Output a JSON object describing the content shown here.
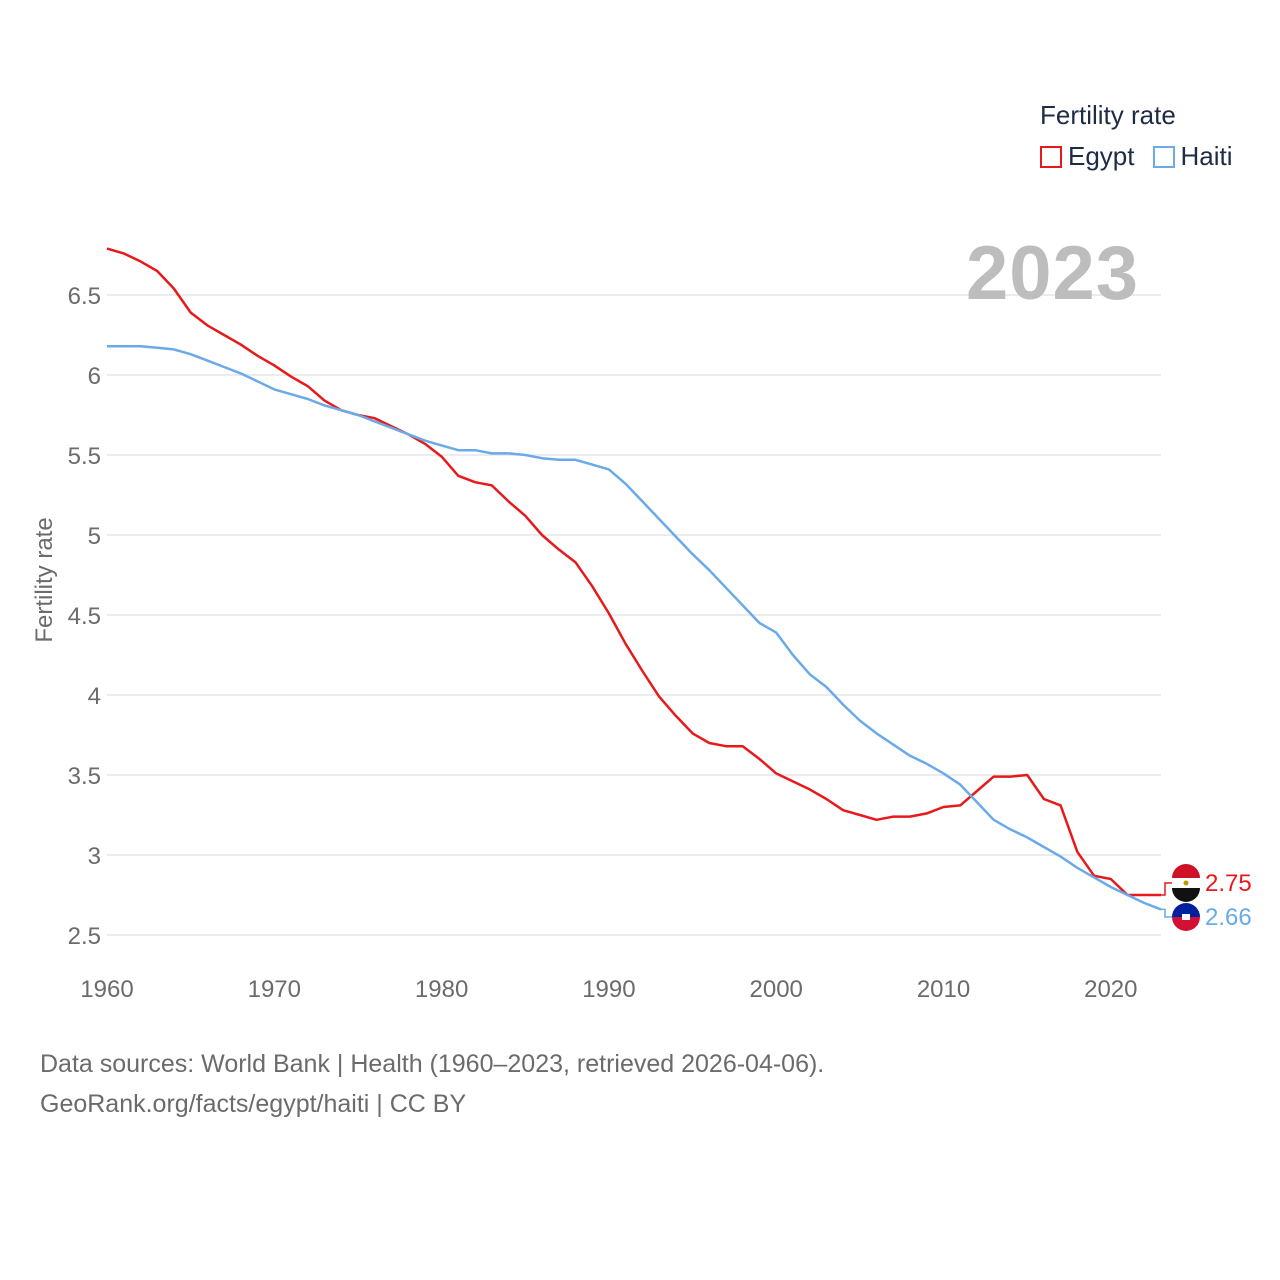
{
  "legend": {
    "title": "Fertility rate",
    "items": [
      {
        "label": "Egypt",
        "color": "#e8191b"
      },
      {
        "label": "Haiti",
        "color": "#6aaae8"
      }
    ]
  },
  "year_label": "2023",
  "source": {
    "line1": "Data sources: World Bank | Health (1960–2023, retrieved 2026-04-06).",
    "line2": "GeoRank.org/facts/egypt/haiti | CC BY"
  },
  "chart_data": {
    "type": "line",
    "title": "Fertility rate",
    "xlabel": "",
    "ylabel": "Fertility rate",
    "xlim": [
      1960,
      2023
    ],
    "ylim": [
      2.5,
      6.8
    ],
    "xticks": [
      1960,
      1970,
      1980,
      1990,
      2000,
      2010,
      2020
    ],
    "xtick_labels": [
      "1960",
      "1970",
      "1980",
      "1990",
      "2000",
      "2010",
      "2020"
    ],
    "yticks": [
      2.5,
      3,
      3.5,
      4,
      4.5,
      5,
      5.5,
      6,
      6.5
    ],
    "ytick_labels": [
      "2.5",
      "3",
      "3.5",
      "4",
      "4.5",
      "5",
      "5.5",
      "6",
      "6.5"
    ],
    "grid": true,
    "series": [
      {
        "name": "Egypt",
        "color": "#e8191b",
        "end_label": "2.75",
        "x": [
          1960,
          1961,
          1962,
          1963,
          1964,
          1965,
          1966,
          1967,
          1968,
          1969,
          1970,
          1971,
          1972,
          1973,
          1974,
          1975,
          1976,
          1977,
          1978,
          1979,
          1980,
          1981,
          1982,
          1983,
          1984,
          1985,
          1986,
          1987,
          1988,
          1989,
          1990,
          1991,
          1992,
          1993,
          1994,
          1995,
          1996,
          1997,
          1998,
          1999,
          2000,
          2001,
          2002,
          2003,
          2004,
          2005,
          2006,
          2007,
          2008,
          2009,
          2010,
          2011,
          2012,
          2013,
          2014,
          2015,
          2016,
          2017,
          2018,
          2019,
          2020,
          2021,
          2022,
          2023
        ],
        "y": [
          6.79,
          6.76,
          6.71,
          6.65,
          6.54,
          6.39,
          6.31,
          6.25,
          6.19,
          6.12,
          6.06,
          5.99,
          5.93,
          5.84,
          5.78,
          5.75,
          5.73,
          5.68,
          5.63,
          5.57,
          5.49,
          5.37,
          5.33,
          5.31,
          5.21,
          5.12,
          5.0,
          4.91,
          4.83,
          4.68,
          4.51,
          4.32,
          4.15,
          3.99,
          3.87,
          3.76,
          3.7,
          3.68,
          3.68,
          3.6,
          3.51,
          3.46,
          3.41,
          3.35,
          3.28,
          3.25,
          3.22,
          3.24,
          3.24,
          3.26,
          3.3,
          3.31,
          3.4,
          3.49,
          3.49,
          3.5,
          3.35,
          3.31,
          3.02,
          2.87,
          2.85,
          2.75,
          2.75,
          2.75
        ]
      },
      {
        "name": "Haiti",
        "color": "#6aaae8",
        "end_label": "2.66",
        "x": [
          1960,
          1961,
          1962,
          1963,
          1964,
          1965,
          1966,
          1967,
          1968,
          1969,
          1970,
          1971,
          1972,
          1973,
          1974,
          1975,
          1976,
          1977,
          1978,
          1979,
          1980,
          1981,
          1982,
          1983,
          1984,
          1985,
          1986,
          1987,
          1988,
          1989,
          1990,
          1991,
          1992,
          1993,
          1994,
          1995,
          1996,
          1997,
          1998,
          1999,
          2000,
          2001,
          2002,
          2003,
          2004,
          2005,
          2006,
          2007,
          2008,
          2009,
          2010,
          2011,
          2012,
          2013,
          2014,
          2015,
          2016,
          2017,
          2018,
          2019,
          2020,
          2021,
          2022,
          2023
        ],
        "y": [
          6.18,
          6.18,
          6.18,
          6.17,
          6.16,
          6.13,
          6.09,
          6.05,
          6.01,
          5.96,
          5.91,
          5.88,
          5.85,
          5.81,
          5.78,
          5.75,
          5.71,
          5.67,
          5.63,
          5.59,
          5.56,
          5.53,
          5.53,
          5.51,
          5.51,
          5.5,
          5.48,
          5.47,
          5.47,
          5.44,
          5.41,
          5.32,
          5.21,
          5.1,
          4.99,
          4.88,
          4.78,
          4.67,
          4.56,
          4.45,
          4.39,
          4.25,
          4.13,
          4.05,
          3.94,
          3.84,
          3.76,
          3.69,
          3.62,
          3.57,
          3.51,
          3.44,
          3.33,
          3.22,
          3.16,
          3.11,
          3.05,
          2.99,
          2.92,
          2.86,
          2.8,
          2.75,
          2.7,
          2.66
        ]
      }
    ]
  }
}
